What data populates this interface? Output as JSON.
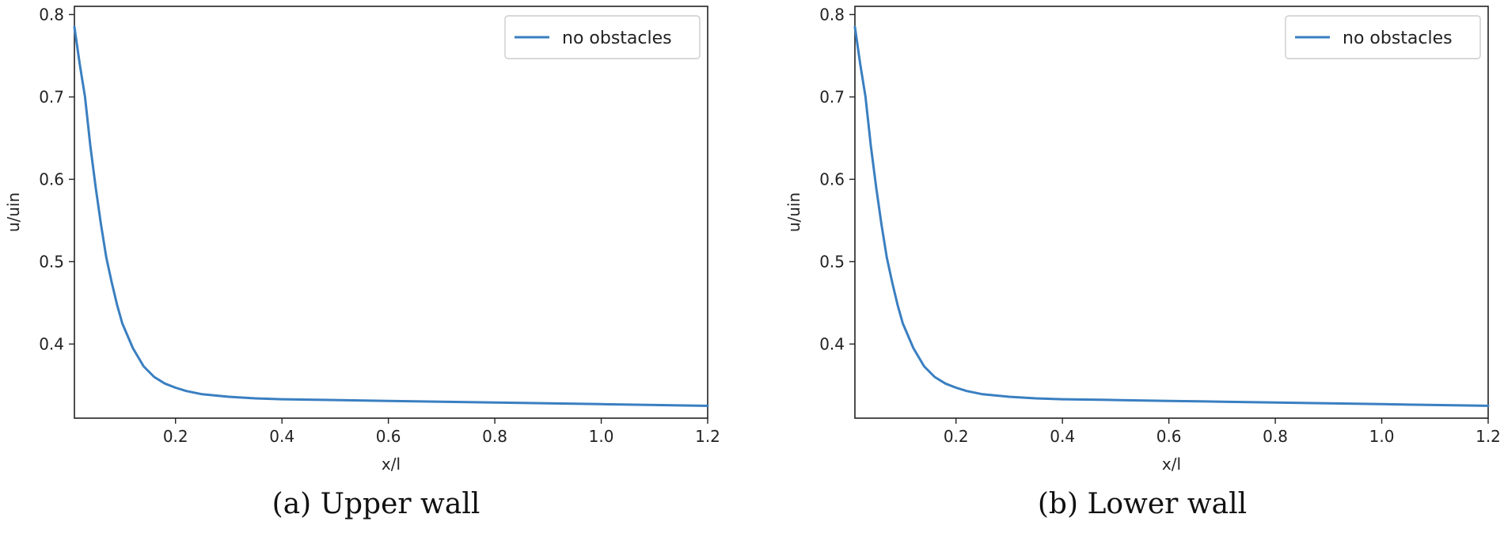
{
  "chart_data": [
    {
      "type": "line",
      "caption": "(a) Upper wall",
      "xlabel": "x/l",
      "ylabel": "u/uin",
      "xlim": [
        0.01,
        1.2
      ],
      "ylim": [
        0.31,
        0.81
      ],
      "xticks": [
        0.2,
        0.4,
        0.6,
        0.8,
        1.0,
        1.2
      ],
      "xtick_labels": [
        "0.2",
        "0.4",
        "0.6",
        "0.8",
        "1.0",
        "1.2"
      ],
      "yticks": [
        0.4,
        0.5,
        0.6,
        0.7,
        0.8
      ],
      "ytick_labels": [
        "0.4",
        "0.5",
        "0.6",
        "0.7",
        "0.8"
      ],
      "legend": {
        "placement": "top-right",
        "entries": [
          "no obstacles"
        ]
      },
      "grid": false,
      "color": "#3a7fc1",
      "series": [
        {
          "name": "no obstacles",
          "x": [
            0.01,
            0.02,
            0.03,
            0.04,
            0.05,
            0.06,
            0.07,
            0.08,
            0.09,
            0.1,
            0.12,
            0.14,
            0.16,
            0.18,
            0.2,
            0.22,
            0.25,
            0.3,
            0.35,
            0.4,
            0.5,
            0.6,
            0.7,
            0.8,
            0.9,
            1.0,
            1.1,
            1.2
          ],
          "y": [
            0.785,
            0.74,
            0.7,
            0.64,
            0.59,
            0.545,
            0.505,
            0.475,
            0.448,
            0.425,
            0.395,
            0.373,
            0.36,
            0.352,
            0.347,
            0.343,
            0.339,
            0.336,
            0.334,
            0.333,
            0.332,
            0.331,
            0.33,
            0.329,
            0.328,
            0.327,
            0.326,
            0.325
          ]
        }
      ]
    },
    {
      "type": "line",
      "caption": "(b) Lower wall",
      "xlabel": "x/l",
      "ylabel": "u/uin",
      "xlim": [
        0.01,
        1.2
      ],
      "ylim": [
        0.31,
        0.81
      ],
      "xticks": [
        0.2,
        0.4,
        0.6,
        0.8,
        1.0,
        1.2
      ],
      "xtick_labels": [
        "0.2",
        "0.4",
        "0.6",
        "0.8",
        "1.0",
        "1.2"
      ],
      "yticks": [
        0.4,
        0.5,
        0.6,
        0.7,
        0.8
      ],
      "ytick_labels": [
        "0.4",
        "0.5",
        "0.6",
        "0.7",
        "0.8"
      ],
      "legend": {
        "placement": "top-right",
        "entries": [
          "no obstacles"
        ]
      },
      "grid": false,
      "color": "#3a7fc1",
      "series": [
        {
          "name": "no obstacles",
          "x": [
            0.01,
            0.02,
            0.03,
            0.04,
            0.05,
            0.06,
            0.07,
            0.08,
            0.09,
            0.1,
            0.12,
            0.14,
            0.16,
            0.18,
            0.2,
            0.22,
            0.25,
            0.3,
            0.35,
            0.4,
            0.5,
            0.6,
            0.7,
            0.8,
            0.9,
            1.0,
            1.1,
            1.2
          ],
          "y": [
            0.785,
            0.74,
            0.7,
            0.64,
            0.59,
            0.545,
            0.505,
            0.475,
            0.448,
            0.425,
            0.395,
            0.373,
            0.36,
            0.352,
            0.347,
            0.343,
            0.339,
            0.336,
            0.334,
            0.333,
            0.332,
            0.331,
            0.33,
            0.329,
            0.328,
            0.327,
            0.326,
            0.325
          ]
        }
      ]
    }
  ]
}
